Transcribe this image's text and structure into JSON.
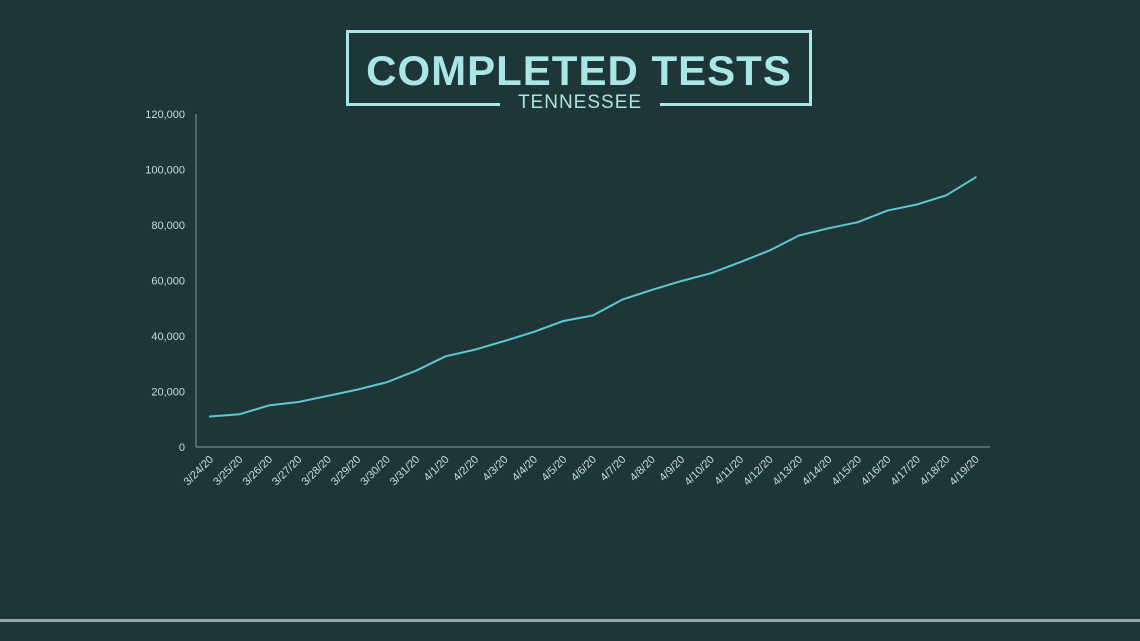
{
  "header": {
    "title": "COMPLETED TESTS",
    "subtitle": "TENNESSEE"
  },
  "chart_data": {
    "type": "line",
    "title": "COMPLETED TESTS",
    "subtitle": "TENNESSEE",
    "xlabel": "",
    "ylabel": "",
    "ylim": [
      0,
      120000
    ],
    "yticks": [
      0,
      20000,
      40000,
      60000,
      80000,
      100000,
      120000
    ],
    "ytick_labels": [
      "0",
      "20,000",
      "40,000",
      "60,000",
      "80,000",
      "100,000",
      "120,000"
    ],
    "grid": false,
    "legend": "none",
    "line_color": "#5cc9d2",
    "categories": [
      "3/24/20",
      "3/25/20",
      "3/26/20",
      "3/27/20",
      "3/28/20",
      "3/29/20",
      "3/30/20",
      "3/31/20",
      "4/1/20",
      "4/2/20",
      "4/3/20",
      "4/4/20",
      "4/5/20",
      "4/6/20",
      "4/7/20",
      "4/8/20",
      "4/9/20",
      "4/10/20",
      "4/11/20",
      "4/12/20",
      "4/13/20",
      "4/14/20",
      "4/15/20",
      "4/16/20",
      "4/17/20",
      "4/18/20",
      "4/19/20"
    ],
    "series": [
      {
        "values": [
          11000,
          11800,
          15000,
          16200,
          18400,
          20700,
          23300,
          27500,
          32700,
          35100,
          38200,
          41500,
          45400,
          47400,
          53100,
          56600,
          59800,
          62600,
          66600,
          70800,
          76200,
          78800,
          81000,
          85200,
          87400,
          90700,
          97200
        ]
      }
    ]
  }
}
